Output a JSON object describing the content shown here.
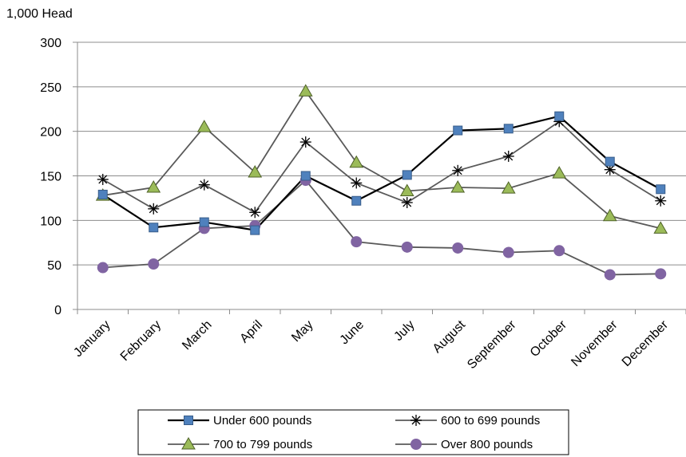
{
  "chart_data": {
    "type": "line",
    "unit_label": "1,000 Head",
    "categories": [
      "January",
      "February",
      "March",
      "April",
      "May",
      "June",
      "July",
      "August",
      "September",
      "October",
      "November",
      "December"
    ],
    "ylim": [
      0,
      300
    ],
    "yticks": [
      0,
      50,
      100,
      150,
      200,
      250,
      300
    ],
    "grid": "horizontal",
    "legend_position": "bottom",
    "series": [
      {
        "name": "Under 600 pounds",
        "marker": "square",
        "color": "#000000",
        "marker_color": "#4f81bd",
        "values": [
          129,
          92,
          98,
          89,
          150,
          122,
          151,
          201,
          203,
          217,
          166,
          135
        ]
      },
      {
        "name": "600 to 699 pounds",
        "marker": "asterisk",
        "color": "#595959",
        "marker_color": "#000000",
        "values": [
          146,
          113,
          140,
          109,
          188,
          142,
          120,
          156,
          172,
          211,
          157,
          122
        ]
      },
      {
        "name": "700 to 799 pounds",
        "marker": "triangle",
        "color": "#595959",
        "marker_color": "#9bbb59",
        "values": [
          128,
          137,
          205,
          154,
          245,
          165,
          133,
          137,
          136,
          153,
          105,
          91
        ]
      },
      {
        "name": "Over 800 pounds",
        "marker": "circle",
        "color": "#595959",
        "marker_color": "#8064a2",
        "values": [
          47,
          51,
          91,
          94,
          145,
          76,
          70,
          69,
          64,
          66,
          39,
          40
        ]
      }
    ]
  }
}
